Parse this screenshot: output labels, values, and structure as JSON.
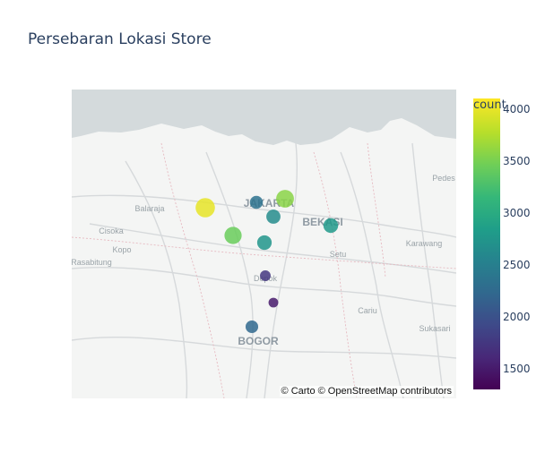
{
  "title": "Persebaran Lokasi Store",
  "attribution": "© Carto © OpenStreetMap contributors",
  "colorbar": {
    "title": "count",
    "range": [
      1300,
      4100
    ],
    "ticks": [
      1500,
      2000,
      2500,
      3000,
      3500,
      4000
    ],
    "tick_labels": [
      "1500",
      "2000",
      "2500",
      "3000",
      "3500",
      "4000"
    ],
    "colorscale": "viridis"
  },
  "map_labels": [
    {
      "text": "JAKARTA",
      "style": "city"
    },
    {
      "text": "BEKASI",
      "style": "city"
    },
    {
      "text": "BOGOR",
      "style": "city"
    },
    {
      "text": "Balaraja",
      "style": "town"
    },
    {
      "text": "Cisoka",
      "style": "town"
    },
    {
      "text": "Kopo",
      "style": "town"
    },
    {
      "text": "Rasabitung",
      "style": "town"
    },
    {
      "text": "Depok",
      "style": "town"
    },
    {
      "text": "Setu",
      "style": "town"
    },
    {
      "text": "Karawang",
      "style": "town"
    },
    {
      "text": "Cariu",
      "style": "town"
    },
    {
      "text": "Pedes",
      "style": "town"
    },
    {
      "text": "Sukasari",
      "style": "town"
    }
  ],
  "chart_data": {
    "type": "scatter",
    "points": [
      {
        "count": 4000
      },
      {
        "count": 3600
      },
      {
        "count": 2350
      },
      {
        "count": 2800
      },
      {
        "count": 3450
      },
      {
        "count": 2650
      },
      {
        "count": 2750
      },
      {
        "count": 1750
      },
      {
        "count": 1500
      },
      {
        "count": 2250
      }
    ]
  },
  "colors": {
    "water": "#d4dadc",
    "land": "#f4f5f4",
    "road": "#d9dcdd",
    "boundary": "#e0b0b8",
    "text": "#2a3f5f"
  }
}
